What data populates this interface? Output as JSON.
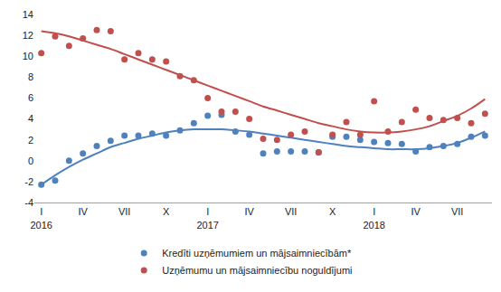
{
  "chart_data": {
    "type": "scatter",
    "categories": [
      "I\n2016",
      null,
      null,
      "IV",
      null,
      null,
      "VII",
      null,
      null,
      "X",
      null,
      null,
      "I\n2017",
      null,
      null,
      "IV",
      null,
      null,
      "VII",
      null,
      null,
      "X",
      null,
      null,
      "I\n2018",
      null,
      null,
      "IV",
      null,
      null,
      "VII",
      null,
      null
    ],
    "series": [
      {
        "type": "line",
        "color": "#c0504d",
        "line_style": "solid",
        "values": [
          12.4,
          12.2,
          11.9,
          11.5,
          11.1,
          10.7,
          10.2,
          9.7,
          9.2,
          8.7,
          8.2,
          7.7,
          7.2,
          6.7,
          6.2,
          5.7,
          5.2,
          4.8,
          4.4,
          4.0,
          3.6,
          3.3,
          3.0,
          2.8,
          2.7,
          2.7,
          2.8,
          3.0,
          3.3,
          3.8,
          4.3,
          5.0,
          5.9
        ]
      },
      {
        "type": "line",
        "color": "#4f81bd",
        "line_style": "solid",
        "values": [
          -2.3,
          -1.4,
          -0.6,
          0.1,
          0.7,
          1.3,
          1.7,
          2.1,
          2.4,
          2.7,
          2.9,
          3.0,
          3.0,
          3.0,
          2.9,
          2.8,
          2.6,
          2.4,
          2.2,
          2.0,
          1.8,
          1.6,
          1.4,
          1.3,
          1.2,
          1.1,
          1.1,
          1.1,
          1.2,
          1.4,
          1.7,
          2.2,
          2.8
        ]
      },
      {
        "name": "Kredīti uzņēmumiem un mājsaimniecībām*",
        "type": "scatter",
        "marker": "circle",
        "color": "#4f81bd",
        "values": [
          -2.3,
          -1.9,
          0.0,
          0.7,
          1.4,
          1.9,
          2.4,
          2.4,
          2.6,
          2.4,
          2.9,
          3.6,
          4.3,
          4.4,
          2.8,
          2.5,
          0.7,
          0.9,
          0.9,
          0.9,
          0.8,
          2.3,
          2.3,
          2.0,
          1.8,
          1.7,
          1.6,
          0.9,
          1.3,
          1.4,
          1.6,
          2.3,
          2.4
        ]
      },
      {
        "name": "Uzņēmumu un mājsaimniecību noguldījumi",
        "type": "scatter",
        "marker": "circle",
        "color": "#c0504d",
        "values": [
          10.3,
          11.9,
          11.0,
          11.7,
          12.5,
          12.4,
          9.7,
          10.3,
          9.7,
          9.5,
          8.1,
          7.7,
          6.0,
          4.7,
          4.7,
          4.0,
          2.1,
          2.0,
          2.5,
          2.8,
          0.8,
          2.5,
          3.7,
          2.5,
          5.7,
          2.8,
          3.7,
          4.9,
          4.1,
          3.9,
          4.1,
          3.6,
          4.5
        ]
      }
    ],
    "ylim": [
      -4,
      14
    ],
    "yticks": [
      -4,
      -2,
      0,
      2,
      4,
      6,
      8,
      10,
      12,
      14
    ],
    "grid": false,
    "legend": "bottom"
  }
}
